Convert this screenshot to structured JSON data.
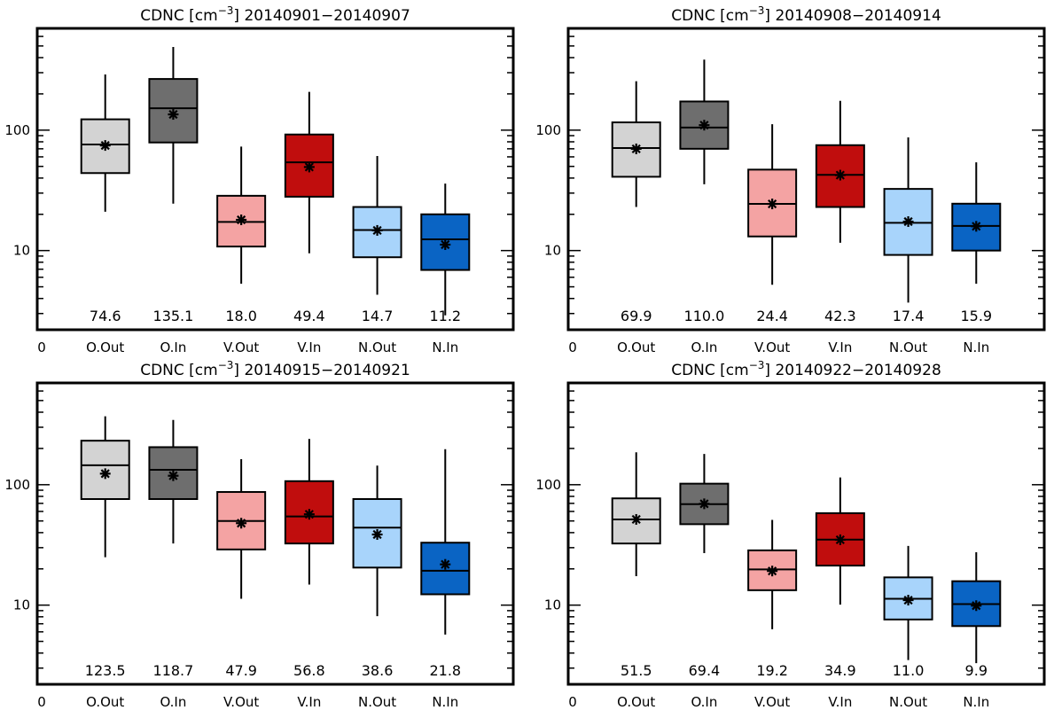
{
  "chart_data": [
    {
      "type": "box",
      "title_prefix": "CDNC [cm",
      "title_exp": "−3",
      "title_suffix": "] 20140901−20140907",
      "y_scale": "log",
      "ylim": [
        2.2,
        700
      ],
      "y_tick_labels": [
        "10",
        "100"
      ],
      "x_zero_label": "0",
      "categories": [
        "O.Out",
        "O.In",
        "V.Out",
        "V.In",
        "N.Out",
        "N.In"
      ],
      "colors": [
        "#d3d3d3",
        "#6e6e6e",
        "#f4a3a3",
        "#c00d0d",
        "#a8d4fb",
        "#0a64c4"
      ],
      "boxes": [
        {
          "whisker_low": 21,
          "q1": 44,
          "median": 76,
          "q3": 123,
          "whisker_high": 290,
          "mean": 74.6
        },
        {
          "whisker_low": 24.5,
          "q1": 79,
          "median": 152,
          "q3": 266,
          "whisker_high": 490,
          "mean": 135.1
        },
        {
          "whisker_low": 5.3,
          "q1": 10.8,
          "median": 17.3,
          "q3": 28.5,
          "whisker_high": 73,
          "mean": 18.0
        },
        {
          "whisker_low": 9.5,
          "q1": 28,
          "median": 54,
          "q3": 92,
          "whisker_high": 208,
          "mean": 49.4
        },
        {
          "whisker_low": 4.3,
          "q1": 8.8,
          "median": 14.8,
          "q3": 23,
          "whisker_high": 61,
          "mean": 14.7
        },
        {
          "whisker_low": 2.9,
          "q1": 6.9,
          "median": 12.4,
          "q3": 20,
          "whisker_high": 36,
          "mean": 11.2
        }
      ],
      "mean_labels": [
        "74.6",
        "135.1",
        "18.0",
        "49.4",
        "14.7",
        "11.2"
      ]
    },
    {
      "type": "box",
      "title_prefix": "CDNC [cm",
      "title_exp": "−3",
      "title_suffix": "] 20140908−20140914",
      "y_scale": "log",
      "ylim": [
        2.2,
        700
      ],
      "y_tick_labels": [
        "10",
        "100"
      ],
      "x_zero_label": "0",
      "categories": [
        "O.Out",
        "O.In",
        "V.Out",
        "V.In",
        "N.Out",
        "N.In"
      ],
      "colors": [
        "#d3d3d3",
        "#6e6e6e",
        "#f4a3a3",
        "#c00d0d",
        "#a8d4fb",
        "#0a64c4"
      ],
      "boxes": [
        {
          "whisker_low": 23,
          "q1": 41,
          "median": 71,
          "q3": 116,
          "whisker_high": 255,
          "mean": 69.9
        },
        {
          "whisker_low": 35.5,
          "q1": 70,
          "median": 105,
          "q3": 173,
          "whisker_high": 385,
          "mean": 110.0
        },
        {
          "whisker_low": 5.2,
          "q1": 13.1,
          "median": 24.4,
          "q3": 47,
          "whisker_high": 112,
          "mean": 24.4
        },
        {
          "whisker_low": 11.6,
          "q1": 23,
          "median": 42.5,
          "q3": 75,
          "whisker_high": 175,
          "mean": 42.3
        },
        {
          "whisker_low": 3.7,
          "q1": 9.2,
          "median": 17,
          "q3": 32.5,
          "whisker_high": 87,
          "mean": 17.4
        },
        {
          "whisker_low": 5.3,
          "q1": 10,
          "median": 16,
          "q3": 24.5,
          "whisker_high": 54,
          "mean": 15.9
        }
      ],
      "mean_labels": [
        "69.9",
        "110.0",
        "24.4",
        "42.3",
        "17.4",
        "15.9"
      ]
    },
    {
      "type": "box",
      "title_prefix": "CDNC [cm",
      "title_exp": "−3",
      "title_suffix": "] 20140915−20140921",
      "y_scale": "log",
      "ylim": [
        2.2,
        700
      ],
      "y_tick_labels": [
        "10",
        "100"
      ],
      "x_zero_label": "0",
      "categories": [
        "O.Out",
        "O.In",
        "V.Out",
        "V.In",
        "N.Out",
        "N.In"
      ],
      "colors": [
        "#d3d3d3",
        "#6e6e6e",
        "#f4a3a3",
        "#c00d0d",
        "#a8d4fb",
        "#0a64c4"
      ],
      "boxes": [
        {
          "whisker_low": 25,
          "q1": 76,
          "median": 145,
          "q3": 232,
          "whisker_high": 370,
          "mean": 123.5
        },
        {
          "whisker_low": 32.5,
          "q1": 76,
          "median": 133,
          "q3": 205,
          "whisker_high": 345,
          "mean": 118.7
        },
        {
          "whisker_low": 11.3,
          "q1": 29,
          "median": 50,
          "q3": 87,
          "whisker_high": 163,
          "mean": 47.9
        },
        {
          "whisker_low": 14.8,
          "q1": 32.5,
          "median": 54.5,
          "q3": 107,
          "whisker_high": 240,
          "mean": 56.8
        },
        {
          "whisker_low": 8.1,
          "q1": 20.5,
          "median": 44,
          "q3": 76,
          "whisker_high": 144,
          "mean": 38.6
        },
        {
          "whisker_low": 5.7,
          "q1": 12.3,
          "median": 19.3,
          "q3": 33,
          "whisker_high": 197,
          "mean": 21.8
        }
      ],
      "mean_labels": [
        "123.5",
        "118.7",
        "47.9",
        "56.8",
        "38.6",
        "21.8"
      ]
    },
    {
      "type": "box",
      "title_prefix": "CDNC [cm",
      "title_exp": "−3",
      "title_suffix": "] 20140922−20140928",
      "y_scale": "log",
      "ylim": [
        2.2,
        700
      ],
      "y_tick_labels": [
        "10",
        "100"
      ],
      "x_zero_label": "0",
      "categories": [
        "O.Out",
        "O.In",
        "V.Out",
        "V.In",
        "N.Out",
        "N.In"
      ],
      "colors": [
        "#d3d3d3",
        "#6e6e6e",
        "#f4a3a3",
        "#c00d0d",
        "#a8d4fb",
        "#0a64c4"
      ],
      "boxes": [
        {
          "whisker_low": 17.4,
          "q1": 32.5,
          "median": 51.5,
          "q3": 77,
          "whisker_high": 186,
          "mean": 51.5
        },
        {
          "whisker_low": 27,
          "q1": 47,
          "median": 69,
          "q3": 102,
          "whisker_high": 180,
          "mean": 69.4
        },
        {
          "whisker_low": 6.3,
          "q1": 13.3,
          "median": 19.8,
          "q3": 28.5,
          "whisker_high": 51,
          "mean": 19.2
        },
        {
          "whisker_low": 10.1,
          "q1": 21.3,
          "median": 35,
          "q3": 58,
          "whisker_high": 115,
          "mean": 34.9
        },
        {
          "whisker_low": 3.5,
          "q1": 7.6,
          "median": 11.3,
          "q3": 17,
          "whisker_high": 31,
          "mean": 11.0
        },
        {
          "whisker_low": 3.3,
          "q1": 6.7,
          "median": 10.2,
          "q3": 15.8,
          "whisker_high": 27.5,
          "mean": 9.9
        }
      ],
      "mean_labels": [
        "51.5",
        "69.4",
        "19.2",
        "34.9",
        "11.0",
        "9.9"
      ]
    }
  ]
}
